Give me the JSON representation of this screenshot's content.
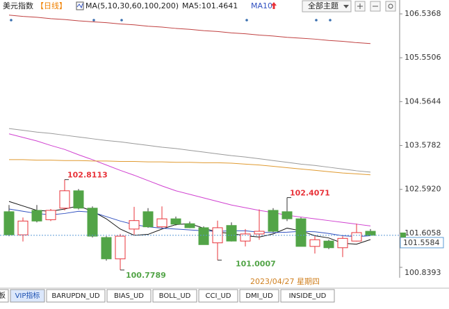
{
  "chart_data": {
    "type": "candlestick",
    "title": "美元指数",
    "period": "【日线】",
    "ma_label": "MA(5,10,30,60,100,200)",
    "ma5_label": "MA5:101.4641",
    "theme_button": "全部主题",
    "date_label": "2023/04/27 星期四",
    "up_color": "#e8333a",
    "down_color": "#52a447",
    "open": [
      102.09,
      101.57,
      102.12,
      101.91,
      102.17,
      102.56,
      102.17,
      101.51,
      101.03,
      101.7,
      102.09,
      101.75,
      101.93,
      101.82,
      101.73,
      101.39,
      101.78,
      101.43,
      101.59,
      102.12,
      102.09,
      101.93,
      101.31,
      101.43,
      101.28,
      101.43,
      101.65
    ],
    "high": [
      102.24,
      101.96,
      102.24,
      102.15,
      102.8113,
      102.6,
      102.21,
      101.54,
      101.59,
      102.2,
      102.17,
      102.21,
      101.98,
      101.87,
      101.76,
      101.89,
      101.85,
      101.7,
      102.14,
      102.17,
      102.4071,
      101.96,
      101.54,
      101.46,
      101.54,
      101.82,
      101.7
    ],
    "low": [
      101.54,
      101.42,
      101.85,
      101.88,
      102.12,
      102.14,
      101.51,
      100.99,
      100.7789,
      101.57,
      101.73,
      101.73,
      101.78,
      101.72,
      101.35,
      101.0007,
      101.42,
      101.31,
      101.46,
      101.62,
      101.88,
      101.31,
      101.15,
      101.25,
      101.07,
      101.42,
      101.56
    ],
    "close": [
      101.57,
      101.88,
      101.88,
      102.12,
      102.56,
      102.17,
      101.54,
      101.03,
      101.54,
      101.89,
      101.75,
      101.93,
      101.81,
      101.73,
      101.35,
      101.73,
      101.43,
      101.59,
      101.65,
      101.65,
      101.93,
      101.31,
      101.46,
      101.28,
      101.49,
      101.62,
      101.5584
    ],
    "series": [
      {
        "name": "MA5",
        "color": "#111111",
        "values": [
          102.32,
          102.22,
          102.12,
          102.1,
          102.15,
          102.22,
          102.1,
          101.93,
          101.7,
          101.56,
          101.58,
          101.7,
          101.8,
          101.82,
          101.72,
          101.63,
          101.6,
          101.55,
          101.52,
          101.59,
          101.72,
          101.66,
          101.55,
          101.5,
          101.38,
          101.36,
          101.4641
        ]
      },
      {
        "name": "MA10",
        "color": "#3050c0",
        "values": [
          102.15,
          102.1,
          102.05,
          102.02,
          102.05,
          102.1,
          102.08,
          101.98,
          101.88,
          101.8,
          101.75,
          101.72,
          101.7,
          101.68,
          101.66,
          101.65,
          101.66,
          101.66,
          101.63,
          101.62,
          101.63,
          101.65,
          101.64,
          101.6,
          101.55,
          101.53,
          101.55
        ]
      },
      {
        "color": "#d040d0",
        "values": [
          103.84,
          103.76,
          103.68,
          103.58,
          103.49,
          103.37,
          103.26,
          103.14,
          103.02,
          102.91,
          102.79,
          102.67,
          102.56,
          102.48,
          102.4,
          102.32,
          102.24,
          102.18,
          102.12,
          102.07,
          102.01,
          101.97,
          101.93,
          101.89,
          101.85,
          101.81,
          101.77
        ]
      },
      {
        "color": "#999999",
        "values": [
          103.96,
          103.92,
          103.88,
          103.85,
          103.81,
          103.77,
          103.73,
          103.69,
          103.66,
          103.62,
          103.58,
          103.54,
          103.51,
          103.47,
          103.43,
          103.39,
          103.35,
          103.32,
          103.28,
          103.24,
          103.2,
          103.16,
          103.13,
          103.09,
          103.05,
          103.01,
          102.98
        ]
      },
      {
        "color": "#e09a30",
        "values": [
          103.26,
          103.26,
          103.25,
          103.25,
          103.24,
          103.24,
          103.23,
          103.23,
          103.22,
          103.22,
          103.21,
          103.21,
          103.2,
          103.2,
          103.19,
          103.19,
          103.18,
          103.16,
          103.14,
          103.11,
          103.08,
          103.05,
          103.02,
          102.99,
          102.96,
          102.94,
          102.92
        ]
      },
      {
        "color": "#c04040",
        "values": [
          106.51,
          106.48,
          106.46,
          106.43,
          106.41,
          106.38,
          106.36,
          106.34,
          106.31,
          106.29,
          106.26,
          106.24,
          106.21,
          106.19,
          106.16,
          106.14,
          106.11,
          106.09,
          106.06,
          106.04,
          106.01,
          105.99,
          105.97,
          105.94,
          105.92,
          105.89,
          105.87
        ]
      }
    ],
    "ylim": [
      100.8393,
      106.5368
    ],
    "yticks": [
      106.5368,
      105.5506,
      104.5644,
      103.5782,
      {
        "value": 102.592,
        "label": "102.5920"
      },
      101.6058,
      100.8393
    ]
  },
  "toolbar": {
    "tabs": [
      "板",
      "VIP指标",
      "BARUPDN_UD",
      "BIAS_UD",
      "BOLL_UD",
      "CCI_UD",
      "DMI_UD",
      "INSIDE_UD"
    ]
  }
}
